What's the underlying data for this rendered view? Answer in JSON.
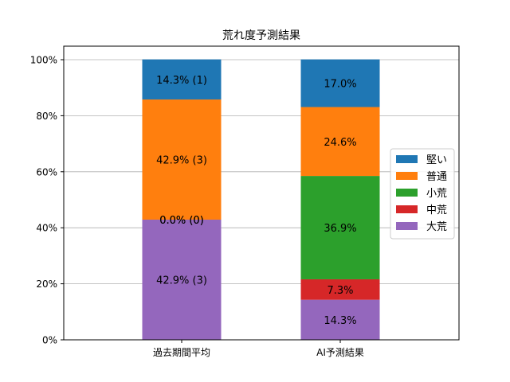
{
  "chart_data": {
    "type": "bar",
    "stacked": true,
    "title": "荒れ度予測結果",
    "xlabel": "",
    "ylabel": "",
    "ylim": [
      0,
      100
    ],
    "y_tick_labels": [
      "0%",
      "20%",
      "40%",
      "60%",
      "80%",
      "100%"
    ],
    "grid": "horizontal",
    "legend_position": "right",
    "categories": [
      "過去期間平均",
      "AI予測結果"
    ],
    "series": [
      {
        "name": "大荒",
        "color": "#9467bd",
        "values": [
          42.9,
          14.3
        ],
        "labels": [
          "42.9% (3)",
          "14.3%"
        ]
      },
      {
        "name": "中荒",
        "color": "#d62728",
        "values": [
          0.0,
          7.3
        ],
        "labels": [
          "0.0% (0)",
          "7.3%"
        ]
      },
      {
        "name": "小荒",
        "color": "#2ca02c",
        "values": [
          0.0,
          36.9
        ],
        "labels": [
          "0.0% (0)",
          "36.9%"
        ]
      },
      {
        "name": "普通",
        "color": "#ff7f0e",
        "values": [
          42.9,
          24.6
        ],
        "labels": [
          "42.9% (3)",
          "24.6%"
        ]
      },
      {
        "name": "堅い",
        "color": "#1f77b4",
        "values": [
          14.3,
          17.0
        ],
        "labels": [
          "14.3% (1)",
          "17.0%"
        ]
      }
    ],
    "legend_order": [
      "堅い",
      "普通",
      "小荒",
      "中荒",
      "大荒"
    ]
  }
}
